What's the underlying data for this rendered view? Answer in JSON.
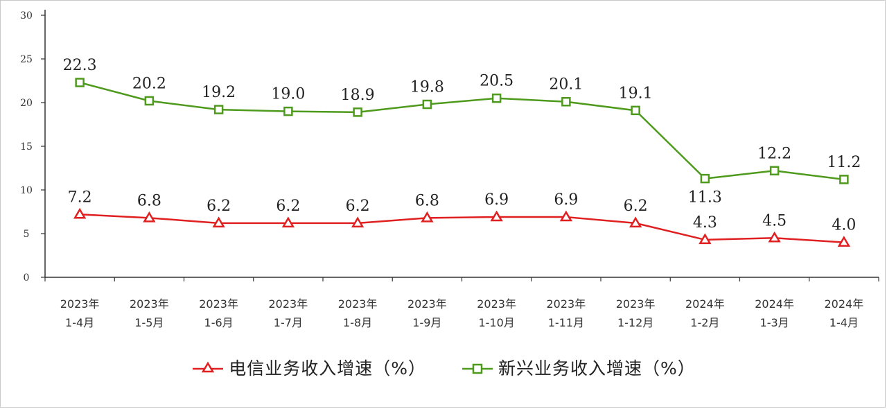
{
  "chart_data": {
    "type": "line",
    "categories": [
      [
        "2023年",
        "1-4月"
      ],
      [
        "2023年",
        "1-5月"
      ],
      [
        "2023年",
        "1-6月"
      ],
      [
        "2023年",
        "1-7月"
      ],
      [
        "2023年",
        "1-8月"
      ],
      [
        "2023年",
        "1-9月"
      ],
      [
        "2023年",
        "1-10月"
      ],
      [
        "2023年",
        "1-11月"
      ],
      [
        "2023年",
        "1-12月"
      ],
      [
        "2024年",
        "1-2月"
      ],
      [
        "2024年",
        "1-3月"
      ],
      [
        "2024年",
        "1-4月"
      ]
    ],
    "series": [
      {
        "name": "电信业务收入增速（%）",
        "color": "#e02020",
        "marker": "triangle",
        "values": [
          7.2,
          6.8,
          6.2,
          6.2,
          6.2,
          6.8,
          6.9,
          6.9,
          6.2,
          4.3,
          4.5,
          4.0
        ],
        "labels": [
          "7.2",
          "6.8",
          "6.2",
          "6.2",
          "6.2",
          "6.8",
          "6.9",
          "6.9",
          "6.2",
          "4.3",
          "4.5",
          "4.0"
        ]
      },
      {
        "name": "新兴业务收入增速（%）",
        "color": "#4e9a1c",
        "marker": "square",
        "values": [
          22.3,
          20.2,
          19.2,
          19.0,
          18.9,
          19.8,
          20.5,
          20.1,
          19.1,
          11.3,
          12.2,
          11.2
        ],
        "labels": [
          "22.3",
          "20.2",
          "19.2",
          "19.0",
          "18.9",
          "19.8",
          "20.5",
          "20.1",
          "19.1",
          "11.3",
          "12.2",
          "11.2"
        ]
      }
    ],
    "y_ticks": [
      0,
      5,
      10,
      15,
      20,
      25,
      30
    ],
    "ylim": [
      0,
      30
    ],
    "grid": false,
    "legend_position": "bottom"
  }
}
